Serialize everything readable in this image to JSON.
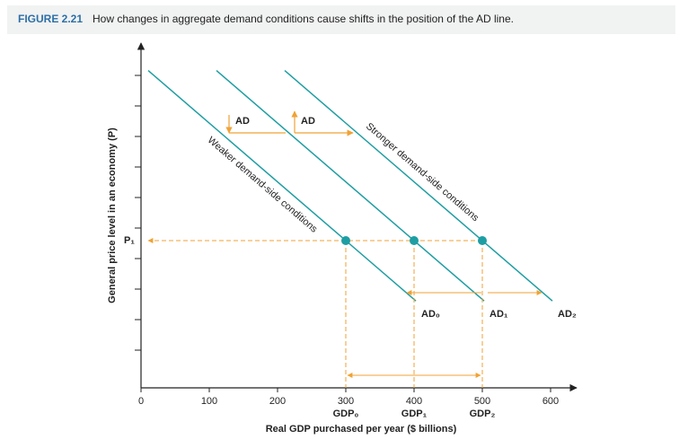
{
  "chart_data": {
    "type": "shift-diagram",
    "figure_label": "FIGURE 2.21",
    "title": "How changes in aggregate demand conditions cause shifts in the position of the AD line.",
    "x_label": "Real GDP purchased per year ($ billions)",
    "y_label": "General price level in an economy (P)",
    "price_label": "P₁",
    "xlim": [
      0,
      640
    ],
    "xticks": [
      0,
      100,
      200,
      300,
      400,
      500,
      600
    ],
    "line_color": "#1e9ea3",
    "guide_color": "#f0a234",
    "lines": [
      {
        "name": "AD₀"
      },
      {
        "name": "AD₁"
      },
      {
        "name": "AD₂"
      }
    ],
    "points": [
      {
        "x": 300,
        "label": "GDP₀"
      },
      {
        "x": 400,
        "label": "GDP₁"
      },
      {
        "x": 500,
        "label": "GDP₂"
      }
    ],
    "annotations": {
      "weaker": "Weaker demand-side conditions",
      "stronger": "Stronger demand-side conditions",
      "shift_down": "AD",
      "shift_up": "AD"
    }
  }
}
